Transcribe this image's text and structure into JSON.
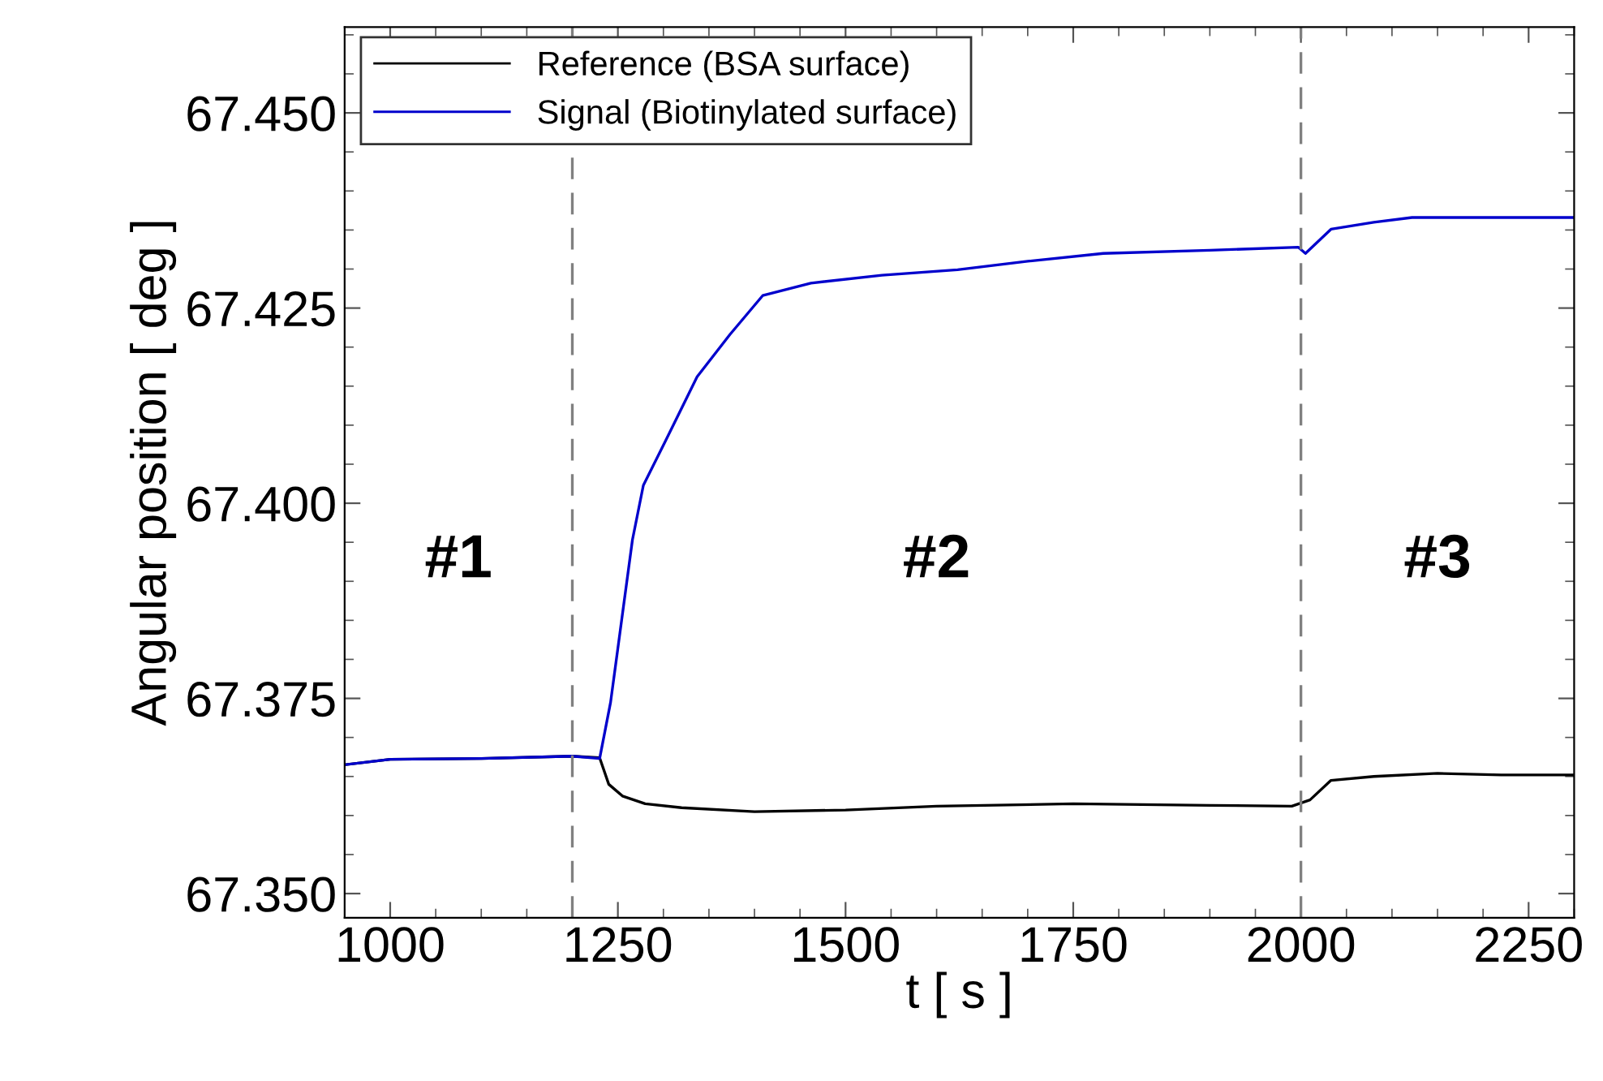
{
  "chart_data": {
    "type": "line",
    "xlabel": "t [ s ]",
    "ylabel": "Angular position [ deg ]",
    "xlim": [
      950,
      2300
    ],
    "xticks": [
      1000,
      1250,
      1500,
      1750,
      2000,
      2250
    ],
    "ylim": [
      67.3469,
      67.461
    ],
    "yticks": [
      {
        "value": 67.35,
        "label": "67.350"
      },
      67.375,
      {
        "value": 67.4,
        "label": "67.400"
      },
      67.425,
      {
        "value": 67.45,
        "label": "67.450"
      }
    ],
    "series": [
      {
        "name": "Reference (BSA surface)",
        "color": "#000000",
        "x": [
          950,
          1000,
          1100,
          1200,
          1230,
          1240,
          1255,
          1280,
          1320,
          1400,
          1500,
          1600,
          1750,
          1900,
          1990,
          2010,
          2033,
          2080,
          2150,
          2220,
          2300
        ],
        "values": [
          67.3665,
          67.3672,
          67.3673,
          67.3676,
          67.3674,
          67.364,
          67.3625,
          67.3615,
          67.361,
          67.3605,
          67.3607,
          67.3612,
          67.3615,
          67.3613,
          67.3612,
          67.362,
          67.3645,
          67.365,
          67.3654,
          67.3652,
          67.3652
        ]
      },
      {
        "name": "Signal (Biotinylated surface)",
        "color": "#0000cc",
        "x": [
          950,
          1000,
          1100,
          1200,
          1230,
          1242,
          1266,
          1278,
          1302,
          1337,
          1373,
          1409,
          1462,
          1540,
          1623,
          1700,
          1783,
          1900,
          1997,
          2005,
          2033,
          2080,
          2122,
          2200,
          2300
        ],
        "values": [
          67.3665,
          67.3672,
          67.3673,
          67.3676,
          67.3673,
          67.3745,
          67.3953,
          67.4023,
          67.4079,
          67.4162,
          67.4216,
          67.4266,
          67.4282,
          67.4292,
          67.4299,
          67.431,
          67.432,
          67.4324,
          67.4328,
          67.432,
          67.4351,
          67.436,
          67.4366,
          67.4366,
          67.4366
        ]
      }
    ],
    "ref_lines": [
      {
        "axis": "x",
        "value": 1200,
        "color": "#808080",
        "line_style": "dashed"
      },
      {
        "axis": "x",
        "value": 2000,
        "color": "#808080",
        "line_style": "dashed"
      }
    ],
    "annotations": [
      "#1",
      "#2",
      "#3"
    ],
    "legend": "top left",
    "grid": false,
    "marker": "none",
    "line_style": "solid"
  }
}
